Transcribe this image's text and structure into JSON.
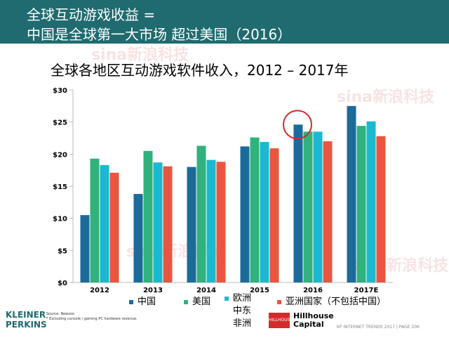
{
  "slide": {
    "title_line1": "全球互动游戏收益 =",
    "title_line2": "中国是全球第一大市场 超过美国（2016）",
    "source_line1": "Source: Newzoo",
    "source_line2": "* Excluding console / gaming PC hardware revenue.",
    "footer": "KP INTERNET TRENDS 2017  |  PAGE 206",
    "logo_kp_line1": "KLEINER",
    "logo_kp_line2": "PERKINS",
    "logo_hh_line1": "Hillhouse",
    "logo_hh_line2": "Capital",
    "logo_hh_mark": "HILLHOUSE",
    "watermark": "sina新浪科技",
    "colors": {
      "header_bg": "#1f6b6f",
      "china": "#1b6b9a",
      "us": "#2fb27c",
      "eu": "#1ab9d0",
      "asia": "#e8563f",
      "highlight": "#d42a2a"
    }
  },
  "chart_data": {
    "type": "bar",
    "title": "全球各地区互动游戏软件收入，2012 – 2017年",
    "categories": [
      "2012",
      "2013",
      "2014",
      "2015",
      "2016",
      "2017E"
    ],
    "series": [
      {
        "name": "中国",
        "color": "#1b6b9a",
        "values": [
          10.5,
          13.8,
          18.0,
          21.2,
          24.6,
          27.5
        ]
      },
      {
        "name": "美国",
        "color": "#2fb27c",
        "values": [
          19.3,
          20.5,
          21.3,
          22.6,
          23.5,
          24.4
        ]
      },
      {
        "name": "欧洲\n中东\n非洲",
        "color": "#1ab9d0",
        "values": [
          18.3,
          18.7,
          19.1,
          21.9,
          23.5,
          25.1
        ]
      },
      {
        "name": "亚洲国家（不包括中国）",
        "color": "#e8563f",
        "values": [
          17.1,
          18.1,
          18.8,
          20.9,
          22.0,
          22.8
        ]
      }
    ],
    "ylim": [
      0,
      30
    ],
    "yticks": [
      0,
      5,
      10,
      15,
      20,
      25,
      30
    ],
    "ytick_labels": [
      "$0",
      "$5",
      "$10",
      "$15",
      "$20",
      "$25",
      "$30"
    ],
    "grid": false,
    "legend_position": "bottom",
    "annotation": "red circle around China 2016 bar top"
  }
}
